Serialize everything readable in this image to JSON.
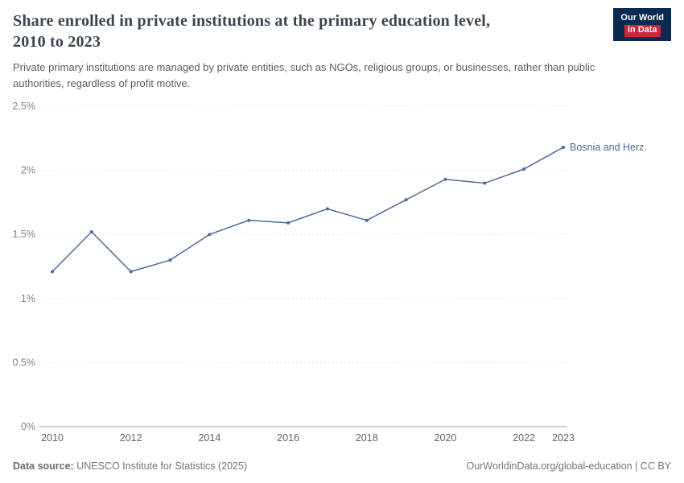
{
  "header": {
    "title_line1": "Share enrolled in private institutions at the primary education level,",
    "title_line2": "2010 to 2023",
    "subtitle": "Private primary institutions are managed by private entities, such as NGOs, religious groups, or businesses, rather than public authorities, regardless of profit motive.",
    "logo_line1": "Our World",
    "logo_line2": "in Data"
  },
  "chart_data": {
    "type": "line",
    "title": "Share enrolled in private institutions at the primary education level, 2010 to 2023",
    "x": [
      2010,
      2011,
      2012,
      2013,
      2014,
      2015,
      2016,
      2017,
      2018,
      2019,
      2020,
      2021,
      2022,
      2023
    ],
    "series": [
      {
        "name": "Bosnia and Herz.",
        "color": "#4C6A9E",
        "values": [
          1.21,
          1.52,
          1.21,
          1.3,
          1.5,
          1.61,
          1.59,
          1.7,
          1.61,
          1.77,
          1.93,
          1.9,
          2.01,
          2.18
        ]
      }
    ],
    "ylim": [
      0,
      2.5
    ],
    "yticks": [
      0,
      0.5,
      1,
      1.5,
      2,
      2.5
    ],
    "ytick_labels": [
      "0%",
      "0.5%",
      "1%",
      "1.5%",
      "2%",
      "2.5%"
    ],
    "xticks": [
      2010,
      2012,
      2014,
      2016,
      2018,
      2020,
      2022,
      2023
    ],
    "grid": "horizontal-dashed",
    "legend": "end-of-line-label"
  },
  "colors": {
    "line": "#4C6A9E",
    "logo_bg": "#0A2A52",
    "logo_accent": "#D0243C",
    "grid": "#DDDDDD",
    "axis": "#9AA3AB",
    "ytick_text": "#7d848c",
    "xtick_text": "#5b646e"
  },
  "footer": {
    "source_label": "Data source:",
    "source_text": "UNESCO Institute for Statistics (2025)",
    "right_text": "OurWorldinData.org/global-education | CC BY"
  }
}
